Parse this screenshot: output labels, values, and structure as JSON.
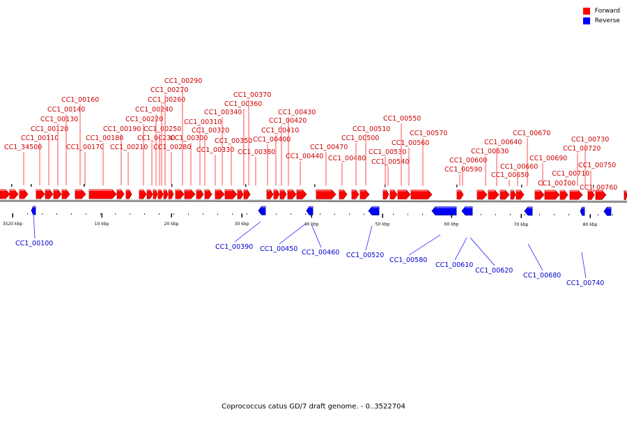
{
  "legend": {
    "forward_label": "Forward",
    "reverse_label": "Reverse",
    "forward_color": "#ff0000",
    "reverse_color": "#0000ff"
  },
  "colors": {
    "backbone": "#777777",
    "forward_label": "#cc0000",
    "reverse_label": "#0000cc"
  },
  "caption": "Coprococcus catus GD/7 draft genome. - 0..3522704",
  "axis_labels": [
    "3520 kbp",
    "10 kbp",
    "20 kbp",
    "30 kbp",
    "40 kbp",
    "50 kbp",
    "60 kbp",
    "70 kbp",
    "80 kbp"
  ],
  "forward_genes": [
    "CC1_34500",
    "CC1_00110",
    "CC1_00120",
    "CC1_00130",
    "CC1_00140",
    "CC1_00160",
    "CC1_00170",
    "CC1_00180",
    "CC1_00190",
    "CC1_00210",
    "CC1_00220",
    "CC1_00230",
    "CC1_00240",
    "CC1_00250",
    "CC1_00260",
    "CC1_00270",
    "CC1_00280",
    "CC1_00290",
    "CC1_00300",
    "CC1_00310",
    "CC1_00320",
    "CC1_00330",
    "CC1_00340",
    "CC1_00350",
    "CC1_00360",
    "CC1_00370",
    "CC1_00380",
    "CC1_00400",
    "CC1_00410",
    "CC1_00420",
    "CC1_00430",
    "CC1_00440",
    "CC1_00470",
    "CC1_00480",
    "CC1_00500",
    "CC1_00510",
    "CC1_00530",
    "CC1_00540",
    "CC1_00550",
    "CC1_00560",
    "CC1_00570",
    "CC1_00590",
    "CC1_00600",
    "CC1_00630",
    "CC1_00640",
    "CC1_00650",
    "CC1_00660",
    "CC1_00670",
    "CC1_00690",
    "CC1_00700",
    "CC1_00710",
    "CC1_00720",
    "CC1_00730",
    "CC1_00750",
    "CC1_00760"
  ],
  "reverse_genes": [
    "CC1_00100",
    "CC1_00390",
    "CC1_00450",
    "CC1_00460",
    "CC1_00520",
    "CC1_00580",
    "CC1_00610",
    "CC1_00620",
    "CC1_00680",
    "CC1_00740"
  ]
}
